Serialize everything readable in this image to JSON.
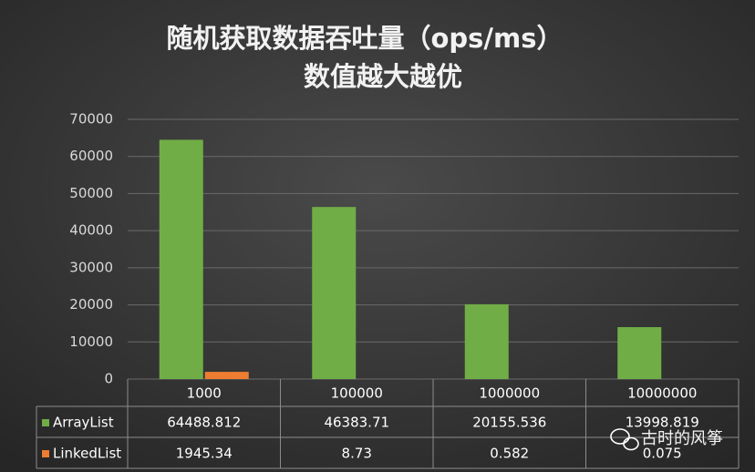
{
  "chart_data": {
    "type": "bar",
    "title": "随机获取数据吞吐量（ops/ms）",
    "subtitle": "数值越大越优",
    "categories": [
      "1000",
      "100000",
      "1000000",
      "10000000"
    ],
    "series": [
      {
        "name": "ArrayList",
        "color": "#70ad47",
        "values": [
          64488.812,
          46383.71,
          20155.536,
          13998.819
        ]
      },
      {
        "name": "LinkedList",
        "color": "#ed7d31",
        "values": [
          1945.34,
          8.73,
          0.582,
          0.075
        ]
      }
    ],
    "ylim": [
      0,
      70000
    ],
    "yticks": [
      0,
      10000,
      20000,
      30000,
      40000,
      50000,
      60000,
      70000
    ],
    "grid": true,
    "watermark": "古时的风筝"
  }
}
